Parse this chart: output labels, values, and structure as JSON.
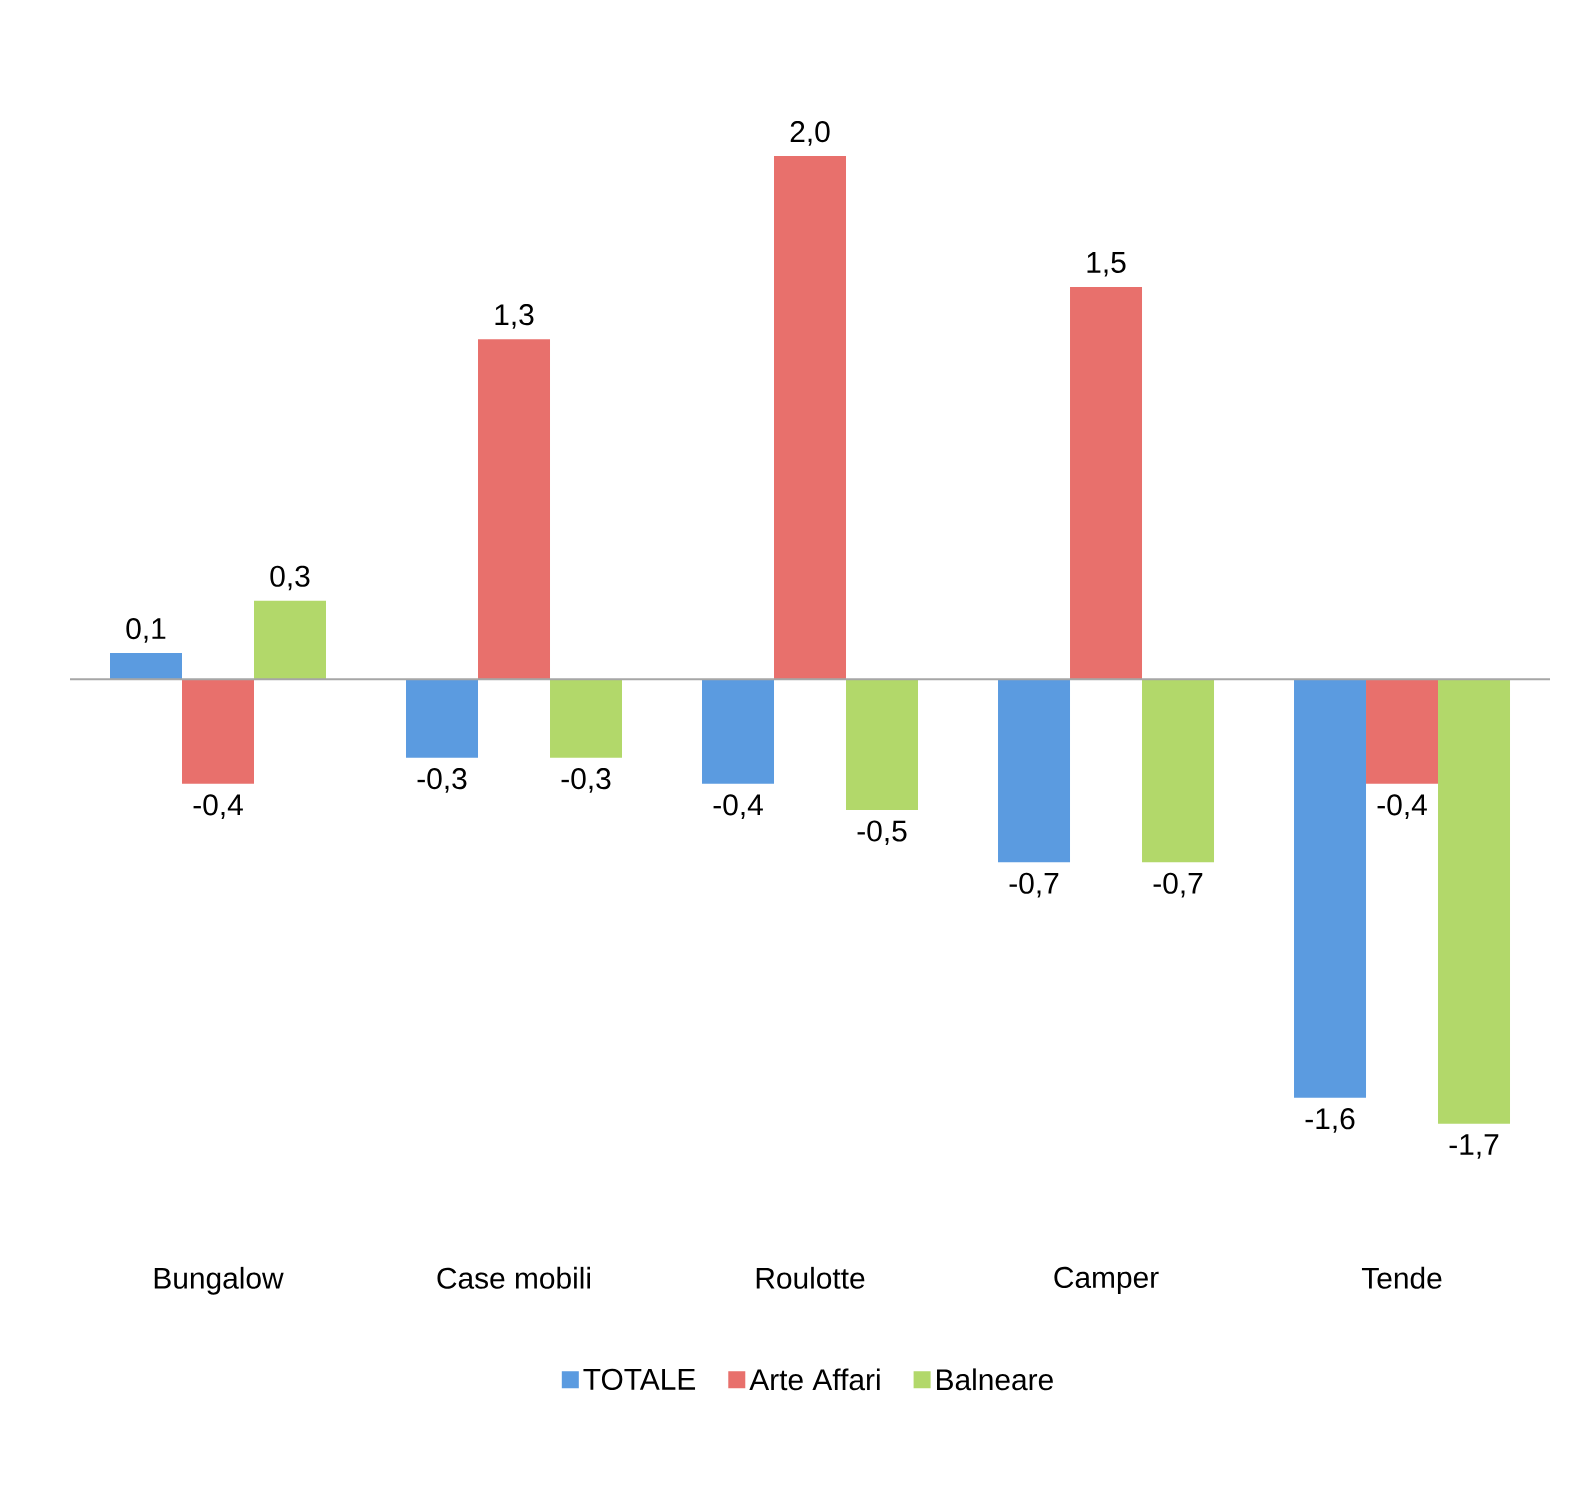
{
  "chart_data": {
    "type": "bar",
    "categories": [
      "Bungalow",
      "Case mobili",
      "Roulotte",
      "Camper",
      "Tende"
    ],
    "series": [
      {
        "name": "TOTALE",
        "color": "#5b9be0",
        "values": [
          0.1,
          -0.3,
          -0.4,
          -0.7,
          -1.6
        ],
        "value_labels": [
          "0,1",
          "-0,3",
          "-0,4",
          "-0,7",
          "-1,6"
        ]
      },
      {
        "name": "Arte Affari",
        "color": "#e8706c",
        "values": [
          -0.4,
          1.3,
          2.0,
          1.5,
          -0.4
        ],
        "value_labels": [
          "-0,4",
          "1,3",
          "2,0",
          "1,5",
          "-0,4"
        ]
      },
      {
        "name": "Balneare",
        "color": "#b2d86a",
        "values": [
          0.3,
          -0.3,
          -0.5,
          -0.7,
          -1.7
        ],
        "value_labels": [
          "0,3",
          "-0,3",
          "-0,5",
          "-0,7",
          "-1,7"
        ]
      }
    ],
    "legend": "bottom"
  }
}
